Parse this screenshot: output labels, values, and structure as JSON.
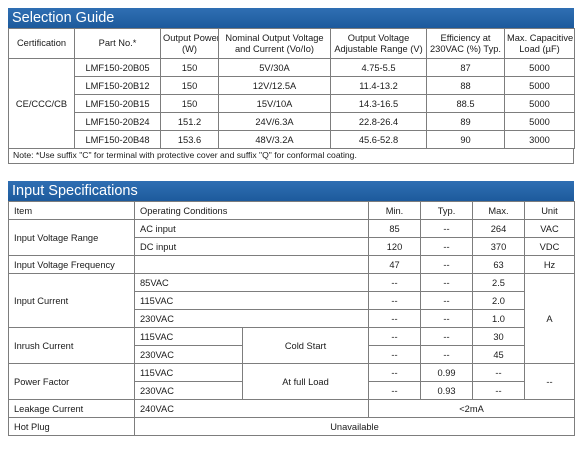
{
  "selection": {
    "title": "Selection Guide",
    "headers": {
      "certification": "Certification",
      "part_no": "Part No.*",
      "output_power": [
        "Output Power",
        "(W)"
      ],
      "nominal": [
        "Nominal Output Voltage",
        "and Current (Vo/Io)"
      ],
      "adjustable": [
        "Output Voltage",
        "Adjustable Range (V)"
      ],
      "efficiency": [
        "Efficiency at",
        "230VAC (%) Typ."
      ],
      "capacitive": [
        "Max. Capacitive",
        "Load (µF)"
      ]
    },
    "certification": "CE/CCC/CB",
    "rows": [
      {
        "part": "LMF150-20B05",
        "power": "150",
        "nominal": "5V/30A",
        "range": "4.75-5.5",
        "eff": "87",
        "cap": "5000"
      },
      {
        "part": "LMF150-20B12",
        "power": "150",
        "nominal": "12V/12.5A",
        "range": "11.4-13.2",
        "eff": "88",
        "cap": "5000"
      },
      {
        "part": "LMF150-20B15",
        "power": "150",
        "nominal": "15V/10A",
        "range": "14.3-16.5",
        "eff": "88.5",
        "cap": "5000"
      },
      {
        "part": "LMF150-20B24",
        "power": "151.2",
        "nominal": "24V/6.3A",
        "range": "22.8-26.4",
        "eff": "89",
        "cap": "5000"
      },
      {
        "part": "LMF150-20B48",
        "power": "153.6",
        "nominal": "48V/3.2A",
        "range": "45.6-52.8",
        "eff": "90",
        "cap": "3000"
      }
    ],
    "note": "Note: *Use suffix \"C\" for terminal with protective cover and suffix \"Q\" for conformal coating."
  },
  "input": {
    "title": "Input Specifications",
    "headers": {
      "item": "Item",
      "conditions": "Operating Conditions",
      "min": "Min.",
      "typ": "Typ.",
      "max": "Max.",
      "unit": "Unit"
    },
    "voltage_range": {
      "item": "Input Voltage Range",
      "ac": {
        "cond": "AC input",
        "min": "85",
        "typ": "--",
        "max": "264",
        "unit": "VAC"
      },
      "dc": {
        "cond": "DC input",
        "min": "120",
        "typ": "--",
        "max": "370",
        "unit": "VDC"
      }
    },
    "frequency": {
      "item": "Input Voltage Frequency",
      "min": "47",
      "typ": "--",
      "max": "63",
      "unit": "Hz"
    },
    "current": {
      "item": "Input Current",
      "unit": "A",
      "rows": [
        {
          "cond": "85VAC",
          "min": "--",
          "typ": "--",
          "max": "2.5"
        },
        {
          "cond": "115VAC",
          "min": "--",
          "typ": "--",
          "max": "2.0"
        },
        {
          "cond": "230VAC",
          "min": "--",
          "typ": "--",
          "max": "1.0"
        }
      ]
    },
    "inrush": {
      "item": "Inrush Current",
      "sub": "Cold Start",
      "rows": [
        {
          "cond": "115VAC",
          "min": "--",
          "typ": "--",
          "max": "30"
        },
        {
          "cond": "230VAC",
          "min": "--",
          "typ": "--",
          "max": "45"
        }
      ]
    },
    "power_factor": {
      "item": "Power Factor",
      "sub": "At full Load",
      "unit": "--",
      "rows": [
        {
          "cond": "115VAC",
          "min": "--",
          "typ": "0.99",
          "max": "--"
        },
        {
          "cond": "230VAC",
          "min": "--",
          "typ": "0.93",
          "max": "--"
        }
      ]
    },
    "leakage": {
      "item": "Leakage Current",
      "cond": "240VAC",
      "value": "<2mA"
    },
    "hotplug": {
      "item": "Hot Plug",
      "value": "Unavailable"
    }
  }
}
